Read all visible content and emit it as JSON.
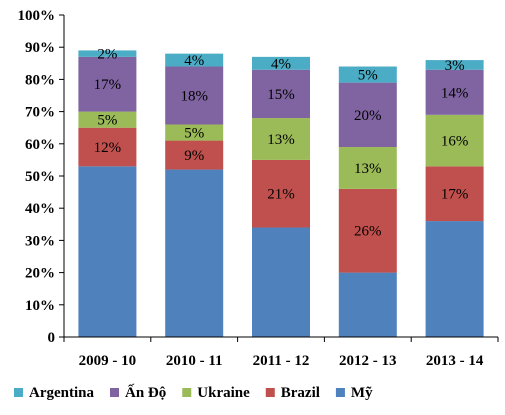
{
  "chart_data": {
    "type": "bar",
    "stacked": true,
    "categories": [
      "2009 - 10",
      "2010 - 11",
      "2011 - 12",
      "2012 - 13",
      "2013 - 14"
    ],
    "series": [
      {
        "name": "Mỹ",
        "color": "#4F81BD",
        "values": [
          53,
          52,
          34,
          20,
          36
        ],
        "labels": [
          "",
          "",
          "",
          "",
          ""
        ]
      },
      {
        "name": "Brazil",
        "color": "#C0504D",
        "values": [
          12,
          9,
          21,
          26,
          17
        ],
        "labels": [
          "12%",
          "9%",
          "21%",
          "26%",
          "17%"
        ]
      },
      {
        "name": "Ukraine",
        "color": "#9BBB59",
        "values": [
          5,
          5,
          13,
          13,
          16
        ],
        "labels": [
          "5%",
          "5%",
          "13%",
          "13%",
          "16%"
        ]
      },
      {
        "name": "Ấn Độ",
        "color": "#8064A2",
        "values": [
          17,
          18,
          15,
          20,
          14
        ],
        "labels": [
          "17%",
          "18%",
          "15%",
          "20%",
          "14%"
        ]
      },
      {
        "name": "Argentina",
        "color": "#4BACC6",
        "values": [
          2,
          4,
          4,
          5,
          3
        ],
        "labels": [
          "2%",
          "4%",
          "4%",
          "5%",
          "3%"
        ]
      }
    ],
    "y_ticks": [
      "0",
      "10%",
      "20%",
      "30%",
      "40%",
      "50%",
      "60%",
      "70%",
      "80%",
      "90%",
      "100%"
    ],
    "ylim": [
      0,
      100
    ],
    "legend": {
      "position": "bottom",
      "order": [
        "Argentina",
        "Ấn Độ",
        "Ukraine",
        "Brazil",
        "Mỹ"
      ]
    },
    "grid": false
  }
}
